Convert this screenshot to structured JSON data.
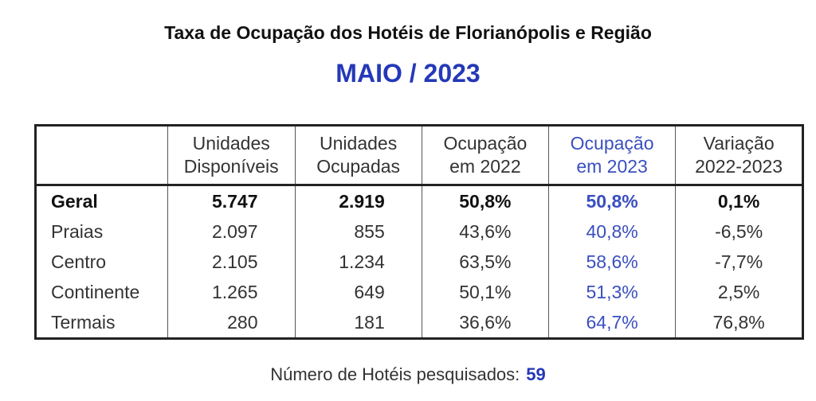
{
  "title": "Taxa de Ocupação dos Hotéis de Florianópolis e Região",
  "subtitle": "MAIO / 2023",
  "colors": {
    "accent_blue": "#2438b8",
    "ocupacao_2023_blue": "#3a4fc0",
    "text": "#333333"
  },
  "chart_data": {
    "type": "table",
    "columns": [
      "",
      "Unidades Disponíveis",
      "Unidades Ocupadas",
      "Ocupação em 2022",
      "Ocupação em 2023",
      "Variação 2022-2023"
    ],
    "header_lines": [
      [
        "",
        ""
      ],
      [
        "Unidades",
        "Disponíveis"
      ],
      [
        "Unidades",
        "Ocupadas"
      ],
      [
        "Ocupação",
        "em 2022"
      ],
      [
        "Ocupação",
        "em 2023"
      ],
      [
        "Variação",
        "2022-2023"
      ]
    ],
    "rows": [
      {
        "label": "Geral",
        "unidades_disponiveis": "5.747",
        "unidades_ocupadas": "2.919",
        "ocupacao_2022": "50,8%",
        "ocupacao_2023": "50,8%",
        "variacao": "0,1%",
        "bold": true
      },
      {
        "label": "Praias",
        "unidades_disponiveis": "2.097",
        "unidades_ocupadas": "855",
        "ocupacao_2022": "43,6%",
        "ocupacao_2023": "40,8%",
        "variacao": "-6,5%",
        "bold": false
      },
      {
        "label": "Centro",
        "unidades_disponiveis": "2.105",
        "unidades_ocupadas": "1.234",
        "ocupacao_2022": "63,5%",
        "ocupacao_2023": "58,6%",
        "variacao": "-7,7%",
        "bold": false
      },
      {
        "label": "Continente",
        "unidades_disponiveis": "1.265",
        "unidades_ocupadas": "649",
        "ocupacao_2022": "50,1%",
        "ocupacao_2023": "51,3%",
        "variacao": "2,5%",
        "bold": false
      },
      {
        "label": "Termais",
        "unidades_disponiveis": "280",
        "unidades_ocupadas": "181",
        "ocupacao_2022": "36,6%",
        "ocupacao_2023": "64,7%",
        "variacao": "76,8%",
        "bold": false
      }
    ]
  },
  "footer": {
    "label": "Número de Hotéis pesquisados:",
    "count": "59"
  }
}
